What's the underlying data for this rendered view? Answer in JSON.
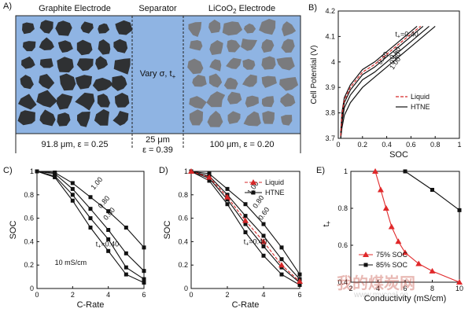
{
  "panelA": {
    "letter": "A)",
    "graphite_label": "Graphite Electrode",
    "separator_label": "Separator",
    "cathode_label_main": "LiCoO",
    "cathode_label_sub": "2",
    "cathode_label_end": " Electrode",
    "vary_label_main": "Vary σ, t",
    "vary_label_sub": "+",
    "graphite_dims": "91.8 μm, ε = 0.25",
    "separator_dims_1": "25 μm",
    "separator_dims_2": "ε = 0.39",
    "cathode_dims": "100 μm, ε = 0.20",
    "colors": {
      "background": "#8fb4e3",
      "graphite": "#2f3133",
      "licoo2": "#7a7b7e",
      "border": "#222222"
    }
  },
  "chart_data": [
    {
      "id": "B",
      "letter": "B)",
      "type": "line",
      "xlabel": "SOC",
      "ylabel": "Cell Potential (V)",
      "xlim": [
        0,
        1
      ],
      "ylim": [
        3.7,
        4.2
      ],
      "xticks": [
        "0",
        "0.2",
        "0.4",
        "0.6",
        "0.8",
        "1"
      ],
      "yticks": [
        "3.7",
        "3.8",
        "3.9",
        "4",
        "4.1",
        "4.2"
      ],
      "legend": {
        "placement": "bottom-right",
        "items": [
          {
            "label": "Liquid",
            "style": "dashed",
            "color": "#d62728"
          },
          {
            "label": "HTNE",
            "style": "solid",
            "color": "#111111"
          }
        ]
      },
      "annotation_prefix": "t",
      "annotation_sub": "+",
      "annotation_main": "=0.40",
      "series": [
        {
          "name": "0.40",
          "style": "solid",
          "x": [
            0.02,
            0.03,
            0.05,
            0.1,
            0.15,
            0.2,
            0.3,
            0.4,
            0.5,
            0.6,
            0.65
          ],
          "y": [
            3.72,
            3.8,
            3.86,
            3.91,
            3.94,
            3.97,
            4.0,
            4.04,
            4.08,
            4.12,
            4.14
          ]
        },
        {
          "name": "0.60",
          "style": "solid",
          "x": [
            0.02,
            0.03,
            0.05,
            0.1,
            0.2,
            0.3,
            0.4,
            0.5,
            0.6,
            0.7
          ],
          "y": [
            3.71,
            3.78,
            3.84,
            3.89,
            3.95,
            3.98,
            4.02,
            4.06,
            4.1,
            4.14
          ]
        },
        {
          "name": "0.80",
          "style": "solid",
          "x": [
            0.02,
            0.03,
            0.05,
            0.1,
            0.2,
            0.3,
            0.4,
            0.5,
            0.6,
            0.7,
            0.75
          ],
          "y": [
            3.7,
            3.76,
            3.82,
            3.87,
            3.93,
            3.96,
            4.0,
            4.04,
            4.08,
            4.12,
            4.14
          ]
        },
        {
          "name": "1.00",
          "style": "solid",
          "x": [
            0.02,
            0.03,
            0.05,
            0.1,
            0.2,
            0.3,
            0.4,
            0.5,
            0.6,
            0.7,
            0.8
          ],
          "y": [
            3.7,
            3.74,
            3.79,
            3.84,
            3.9,
            3.94,
            3.98,
            4.02,
            4.06,
            4.1,
            4.14
          ]
        },
        {
          "name": "Liquid",
          "style": "dashed",
          "x": [
            0.02,
            0.03,
            0.05,
            0.1,
            0.2,
            0.3,
            0.4,
            0.5,
            0.6,
            0.68
          ],
          "y": [
            3.71,
            3.79,
            3.85,
            3.9,
            3.96,
            3.99,
            4.03,
            4.07,
            4.11,
            4.14
          ]
        }
      ]
    },
    {
      "id": "C",
      "letter": "C)",
      "type": "line",
      "xlabel": "C-Rate",
      "ylabel": "SOC",
      "xlim": [
        0,
        6
      ],
      "ylim": [
        0,
        1
      ],
      "xticks": [
        "0",
        "2",
        "4",
        "6"
      ],
      "yticks": [
        "0",
        "0.2",
        "0.4",
        "0.6",
        "0.8",
        "1"
      ],
      "text_note": "10 mS/cm",
      "annotation_prefix": "t",
      "annotation_sub": "+",
      "annotation_main": "=0.40",
      "series": [
        {
          "name": "1.00",
          "x": [
            0,
            1,
            2,
            3,
            4,
            5,
            6
          ],
          "y": [
            1.0,
            0.99,
            0.9,
            0.78,
            0.66,
            0.52,
            0.35
          ]
        },
        {
          "name": "0.80",
          "x": [
            0,
            1,
            2,
            3,
            4,
            5,
            6
          ],
          "y": [
            1.0,
            0.98,
            0.85,
            0.68,
            0.5,
            0.3,
            0.15
          ]
        },
        {
          "name": "0.60",
          "x": [
            0,
            1,
            2,
            3,
            4,
            5,
            6
          ],
          "y": [
            1.0,
            0.96,
            0.8,
            0.6,
            0.42,
            0.18,
            0.08
          ]
        },
        {
          "name": "0.40",
          "x": [
            0,
            1,
            2,
            3,
            4,
            5,
            6
          ],
          "y": [
            1.0,
            0.95,
            0.75,
            0.52,
            0.32,
            0.12,
            0.05
          ]
        }
      ]
    },
    {
      "id": "D",
      "letter": "D)",
      "type": "line",
      "xlabel": "C-Rate",
      "ylabel": "SOC",
      "xlim": [
        0,
        6
      ],
      "ylim": [
        0,
        1
      ],
      "xticks": [
        "0",
        "2",
        "4",
        "6"
      ],
      "yticks": [
        "0",
        "0.2",
        "0.4",
        "0.6",
        "0.8",
        "1"
      ],
      "legend": {
        "placement": "top-right",
        "items": [
          {
            "label": "Liquid",
            "style": "dashed",
            "color": "#d62728",
            "marker": "triangle"
          },
          {
            "label": "HTNE",
            "style": "solid",
            "color": "#111111",
            "marker": "square"
          }
        ]
      },
      "annotation_prefix": "t",
      "annotation_sub": "+",
      "annotation_main": "=0.40",
      "series": [
        {
          "name": "1.00",
          "x": [
            0,
            1,
            2,
            3,
            4,
            5,
            6
          ],
          "y": [
            1.0,
            0.98,
            0.85,
            0.72,
            0.55,
            0.35,
            0.12
          ]
        },
        {
          "name": "0.80",
          "x": [
            0,
            1,
            2,
            3,
            4,
            5,
            6
          ],
          "y": [
            1.0,
            0.96,
            0.8,
            0.62,
            0.45,
            0.25,
            0.08
          ]
        },
        {
          "name": "0.60",
          "x": [
            0,
            1,
            2,
            3,
            4,
            5,
            6
          ],
          "y": [
            1.0,
            0.94,
            0.76,
            0.55,
            0.36,
            0.18,
            0.05
          ]
        },
        {
          "name": "0.40",
          "x": [
            0,
            1,
            2,
            3,
            4,
            5,
            6
          ],
          "y": [
            1.0,
            0.92,
            0.72,
            0.48,
            0.28,
            0.12,
            0.03
          ]
        },
        {
          "name": "Liquid",
          "style": "dashed",
          "x": [
            0,
            1,
            2,
            3,
            4,
            5,
            6
          ],
          "y": [
            1.0,
            0.95,
            0.78,
            0.58,
            0.4,
            0.2,
            0.06
          ]
        }
      ]
    },
    {
      "id": "E",
      "letter": "E)",
      "type": "line",
      "xlabel": "Conductivity (mS/cm)",
      "ylabel_main": "t",
      "ylabel_sub": "+",
      "xlim": [
        2,
        10
      ],
      "ylim": [
        0.4,
        1.0
      ],
      "xticks": [
        "2",
        "4",
        "6",
        "8",
        "10"
      ],
      "yticks": [
        "0.4",
        "0.6",
        "0.8",
        "1"
      ],
      "legend": {
        "placement": "bottom-left",
        "items": [
          {
            "label": "75% SOC",
            "color": "#e0282a",
            "marker": "triangle"
          },
          {
            "label": "85% SOC",
            "color": "#111111",
            "marker": "square"
          }
        ]
      },
      "series": [
        {
          "name": "75% SOC",
          "x": [
            3.8,
            4.2,
            4.6,
            5.0,
            5.5,
            6.0,
            7.0,
            8.0,
            10.0
          ],
          "y": [
            1.0,
            0.9,
            0.8,
            0.7,
            0.62,
            0.56,
            0.5,
            0.46,
            0.4
          ]
        },
        {
          "name": "85% SOC",
          "x": [
            6.0,
            8.0,
            10.0
          ],
          "y": [
            1.0,
            0.9,
            0.79
          ]
        }
      ]
    }
  ],
  "watermark": {
    "text": "我的煤炭网",
    "url": "www.mycoal.cn"
  }
}
